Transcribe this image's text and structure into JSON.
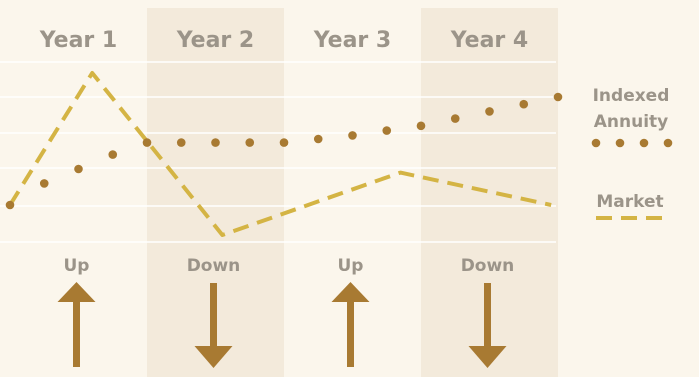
{
  "chart_data": {
    "type": "line",
    "categories": [
      "Year 1",
      "Year 2",
      "Year 3",
      "Year 4"
    ],
    "movement_labels": [
      "Up",
      "Down",
      "Up",
      "Down"
    ],
    "movement_direction": [
      "up",
      "down",
      "up",
      "down"
    ],
    "x": [
      0,
      0.25,
      0.5,
      0.75,
      1,
      1.25,
      1.5,
      1.75,
      2,
      2.25,
      2.5,
      2.75,
      3,
      3.25,
      3.5,
      3.75,
      4
    ],
    "series": [
      {
        "name": "Indexed Annuity",
        "style": "dotted",
        "color": "#a87a32",
        "x": [
          0,
          0.25,
          0.5,
          0.75,
          1,
          1.25,
          1.5,
          1.75,
          2,
          2.25,
          2.5,
          2.75,
          3,
          3.25,
          3.5,
          3.75,
          4
        ],
        "values": [
          0,
          18,
          30,
          42,
          52,
          52,
          52,
          52,
          52,
          55,
          58,
          62,
          66,
          72,
          78,
          84,
          90
        ]
      },
      {
        "name": "Market",
        "style": "dashed",
        "color": "#d4b444",
        "x": [
          0,
          0.6,
          1.55,
          2.85,
          3.95
        ],
        "values": [
          0,
          110,
          -25,
          27,
          0
        ]
      }
    ],
    "legend": {
      "placement": "right",
      "items": [
        {
          "label_lines": [
            "Indexed",
            "Annuity"
          ],
          "style": "dotted"
        },
        {
          "label_lines": [
            "Market"
          ],
          "style": "dashed"
        }
      ]
    },
    "grid": true,
    "title": "",
    "xlabel": "",
    "ylabel": ""
  },
  "colors": {
    "background": "#fbf6ec",
    "band_alternate": "#f3eadb",
    "header_text": "#9b9489",
    "legend_text": "#9b9489",
    "movement_text": "#9b9489",
    "arrow": "#a87a32",
    "annuity": "#a87a32",
    "market": "#d4b444",
    "grid": "#ffffff"
  }
}
